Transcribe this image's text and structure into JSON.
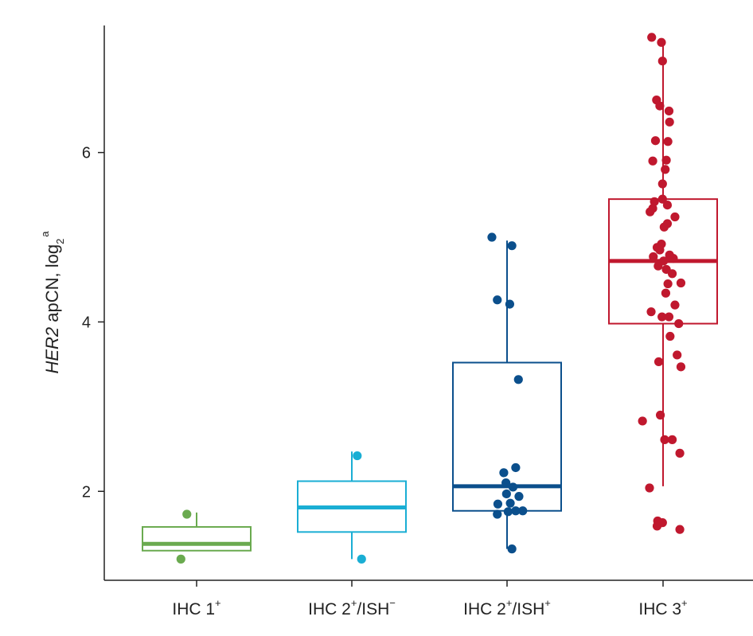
{
  "chart_data": {
    "type": "box",
    "ylabel": {
      "italic": "HER2",
      "main": " apCN, log",
      "sub": "2",
      "sup": "a"
    },
    "ylim": [
      0.95,
      7.5
    ],
    "yticks": [
      2,
      4,
      6
    ],
    "grid": false,
    "categories": [
      {
        "base": "IHC 1",
        "sup1": "+",
        "mid": "",
        "sup2": ""
      },
      {
        "base": "IHC 2",
        "sup1": "+",
        "mid": "/ISH",
        "sup2": "−"
      },
      {
        "base": "IHC 2",
        "sup1": "+",
        "mid": "/ISH",
        "sup2": "+"
      },
      {
        "base": "IHC 3",
        "sup1": "+",
        "mid": "",
        "sup2": ""
      }
    ],
    "series": [
      {
        "color": "#6aaa4f",
        "box": {
          "whisker_low": 1.3,
          "q1": 1.3,
          "median": 1.38,
          "q3": 1.58,
          "whisker_high": 1.75
        },
        "points": [
          [
            -0.18,
            1.73
          ],
          [
            -0.29,
            1.2
          ]
        ]
      },
      {
        "color": "#1aaed4",
        "box": {
          "whisker_low": 1.2,
          "q1": 1.52,
          "median": 1.81,
          "q3": 2.12,
          "whisker_high": 2.47
        },
        "points": [
          [
            0.1,
            2.42
          ],
          [
            0.18,
            1.2
          ]
        ]
      },
      {
        "color": "#0b4f8c",
        "box": {
          "whisker_low": 1.32,
          "q1": 1.77,
          "median": 2.06,
          "q3": 3.52,
          "whisker_high": 4.96
        },
        "points": [
          [
            -0.28,
            5.0
          ],
          [
            0.09,
            4.9
          ],
          [
            -0.18,
            4.26
          ],
          [
            0.05,
            4.21
          ],
          [
            0.21,
            3.32
          ],
          [
            -0.06,
            2.22
          ],
          [
            0.16,
            2.28
          ],
          [
            -0.02,
            2.1
          ],
          [
            0.11,
            2.05
          ],
          [
            -0.01,
            1.97
          ],
          [
            0.22,
            1.94
          ],
          [
            -0.17,
            1.85
          ],
          [
            0.06,
            1.86
          ],
          [
            0.29,
            1.77
          ],
          [
            -0.18,
            1.73
          ],
          [
            0.02,
            1.76
          ],
          [
            0.16,
            1.77
          ],
          [
            0.09,
            1.32
          ]
        ]
      },
      {
        "color": "#c0182e",
        "box": {
          "whisker_low": 2.06,
          "q1": 3.98,
          "median": 4.72,
          "q3": 5.45,
          "whisker_high": 7.34
        },
        "points": [
          [
            -0.21,
            7.36
          ],
          [
            -0.03,
            7.3
          ],
          [
            -0.01,
            7.08
          ],
          [
            -0.12,
            6.62
          ],
          [
            -0.06,
            6.55
          ],
          [
            0.11,
            6.49
          ],
          [
            0.12,
            6.36
          ],
          [
            -0.14,
            6.14
          ],
          [
            0.09,
            6.13
          ],
          [
            -0.19,
            5.9
          ],
          [
            0.06,
            5.91
          ],
          [
            0.04,
            5.8
          ],
          [
            -0.01,
            5.63
          ],
          [
            -0.16,
            5.42
          ],
          [
            -0.01,
            5.45
          ],
          [
            0.08,
            5.38
          ],
          [
            -0.19,
            5.34
          ],
          [
            -0.24,
            5.3
          ],
          [
            0.22,
            5.24
          ],
          [
            0.08,
            5.16
          ],
          [
            0.02,
            5.12
          ],
          [
            -0.03,
            4.92
          ],
          [
            -0.06,
            4.85
          ],
          [
            -0.11,
            4.88
          ],
          [
            -0.18,
            4.77
          ],
          [
            0.12,
            4.79
          ],
          [
            0.19,
            4.75
          ],
          [
            0.01,
            4.72
          ],
          [
            -0.09,
            4.66
          ],
          [
            0.06,
            4.62
          ],
          [
            0.17,
            4.57
          ],
          [
            0.09,
            4.45
          ],
          [
            0.33,
            4.46
          ],
          [
            0.05,
            4.34
          ],
          [
            0.22,
            4.2
          ],
          [
            -0.22,
            4.12
          ],
          [
            -0.02,
            4.06
          ],
          [
            0.11,
            4.06
          ],
          [
            0.29,
            3.98
          ],
          [
            0.13,
            3.83
          ],
          [
            0.26,
            3.61
          ],
          [
            -0.08,
            3.53
          ],
          [
            0.33,
            3.47
          ],
          [
            -0.05,
            2.9
          ],
          [
            -0.38,
            2.83
          ],
          [
            0.03,
            2.61
          ],
          [
            0.17,
            2.61
          ],
          [
            0.31,
            2.45
          ],
          [
            -0.25,
            2.04
          ],
          [
            -0.1,
            1.65
          ],
          [
            -0.11,
            1.59
          ],
          [
            -0.01,
            1.63
          ],
          [
            0.31,
            1.55
          ]
        ]
      }
    ]
  }
}
